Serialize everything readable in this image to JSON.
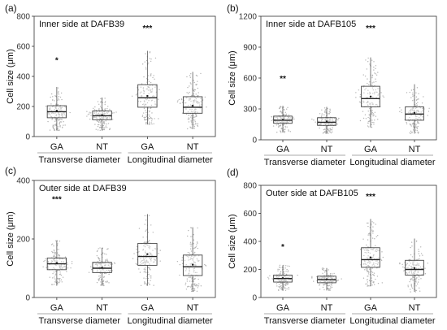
{
  "chart_data": [
    {
      "panel_label": "(a)",
      "type": "boxplot",
      "title": "Inner side at DAFB39",
      "ylabel": "Cell size (μm)",
      "ylim": [
        0,
        800
      ],
      "yticks": [
        0,
        200,
        400,
        600,
        800
      ],
      "categories": [
        "GA",
        "NT",
        "GA",
        "NT"
      ],
      "groups": [
        {
          "label": "Transverse diameter",
          "categories": [
            "GA",
            "NT"
          ]
        },
        {
          "label": "Longitudinal diameter",
          "categories": [
            "GA",
            "NT"
          ]
        }
      ],
      "significance": [
        {
          "category_index": 0,
          "label": "*",
          "y": 510
        },
        {
          "category_index": 2,
          "label": "***",
          "y": 725
        }
      ],
      "boxes": [
        {
          "min": 40,
          "q1": 125,
          "median": 165,
          "q3": 205,
          "max": 330,
          "mean": 172
        },
        {
          "min": 40,
          "q1": 112,
          "median": 138,
          "q3": 170,
          "max": 260,
          "mean": 142
        },
        {
          "min": 80,
          "q1": 195,
          "median": 258,
          "q3": 345,
          "max": 570,
          "mean": 270
        },
        {
          "min": 50,
          "q1": 155,
          "median": 195,
          "q3": 265,
          "max": 430,
          "mean": 205
        }
      ]
    },
    {
      "panel_label": "(b)",
      "type": "boxplot",
      "title": "Inner side at DAFB105",
      "ylabel": "Cell size (μm)",
      "ylim": [
        0,
        1200
      ],
      "yticks": [
        0,
        300,
        600,
        900,
        1200
      ],
      "categories": [
        "GA",
        "NT",
        "GA",
        "NT"
      ],
      "groups": [
        {
          "label": "Transverse diameter",
          "categories": [
            "GA",
            "NT"
          ]
        },
        {
          "label": "Longitudinal diameter",
          "categories": [
            "GA",
            "NT"
          ]
        }
      ],
      "significance": [
        {
          "category_index": 0,
          "label": "**",
          "y": 600
        },
        {
          "category_index": 2,
          "label": "***",
          "y": 1090
        }
      ],
      "boxes": [
        {
          "min": 70,
          "q1": 160,
          "median": 190,
          "q3": 230,
          "max": 330,
          "mean": 195
        },
        {
          "min": 60,
          "q1": 140,
          "median": 170,
          "q3": 215,
          "max": 320,
          "mean": 178
        },
        {
          "min": 120,
          "q1": 320,
          "median": 400,
          "q3": 520,
          "max": 800,
          "mean": 420
        },
        {
          "min": 60,
          "q1": 190,
          "median": 250,
          "q3": 320,
          "max": 540,
          "mean": 262
        }
      ]
    },
    {
      "panel_label": "(c)",
      "type": "boxplot",
      "title": "Outer side at DAFB39",
      "ylabel": "Cell size (μm)",
      "ylim": [
        0,
        400
      ],
      "yticks": [
        0,
        200,
        400
      ],
      "categories": [
        "GA",
        "NT",
        "GA",
        "NT"
      ],
      "groups": [
        {
          "label": "Transverse diameter",
          "categories": [
            "GA",
            "NT"
          ]
        },
        {
          "label": "Longitudinal diameter",
          "categories": [
            "GA",
            "NT"
          ]
        }
      ],
      "significance": [
        {
          "category_index": 0,
          "label": "***",
          "y": 338
        }
      ],
      "boxes": [
        {
          "min": 40,
          "q1": 95,
          "median": 115,
          "q3": 135,
          "max": 195,
          "mean": 118
        },
        {
          "min": 40,
          "q1": 85,
          "median": 100,
          "q3": 120,
          "max": 170,
          "mean": 102
        },
        {
          "min": 40,
          "q1": 110,
          "median": 140,
          "q3": 185,
          "max": 285,
          "mean": 148
        },
        {
          "min": 20,
          "q1": 75,
          "median": 105,
          "q3": 145,
          "max": 240,
          "mean": 112
        }
      ]
    },
    {
      "panel_label": "(d)",
      "type": "boxplot",
      "title": "Outer side at DAFB105",
      "ylabel": "Cell size (μm)",
      "ylim": [
        0,
        800
      ],
      "yticks": [
        0,
        200,
        400,
        600,
        800
      ],
      "categories": [
        "GA",
        "NT",
        "GA",
        "NT"
      ],
      "groups": [
        {
          "label": "Transverse diameter",
          "categories": [
            "GA",
            "NT"
          ]
        },
        {
          "label": "Longitudinal diameter",
          "categories": [
            "GA",
            "NT"
          ]
        }
      ],
      "significance": [
        {
          "category_index": 0,
          "label": "*",
          "y": 365
        },
        {
          "category_index": 2,
          "label": "***",
          "y": 725
        }
      ],
      "boxes": [
        {
          "min": 50,
          "q1": 110,
          "median": 135,
          "q3": 160,
          "max": 230,
          "mean": 138
        },
        {
          "min": 50,
          "q1": 105,
          "median": 128,
          "q3": 152,
          "max": 210,
          "mean": 130
        },
        {
          "min": 80,
          "q1": 215,
          "median": 270,
          "q3": 355,
          "max": 560,
          "mean": 285
        },
        {
          "min": 40,
          "q1": 160,
          "median": 200,
          "q3": 265,
          "max": 420,
          "mean": 210
        }
      ]
    }
  ]
}
